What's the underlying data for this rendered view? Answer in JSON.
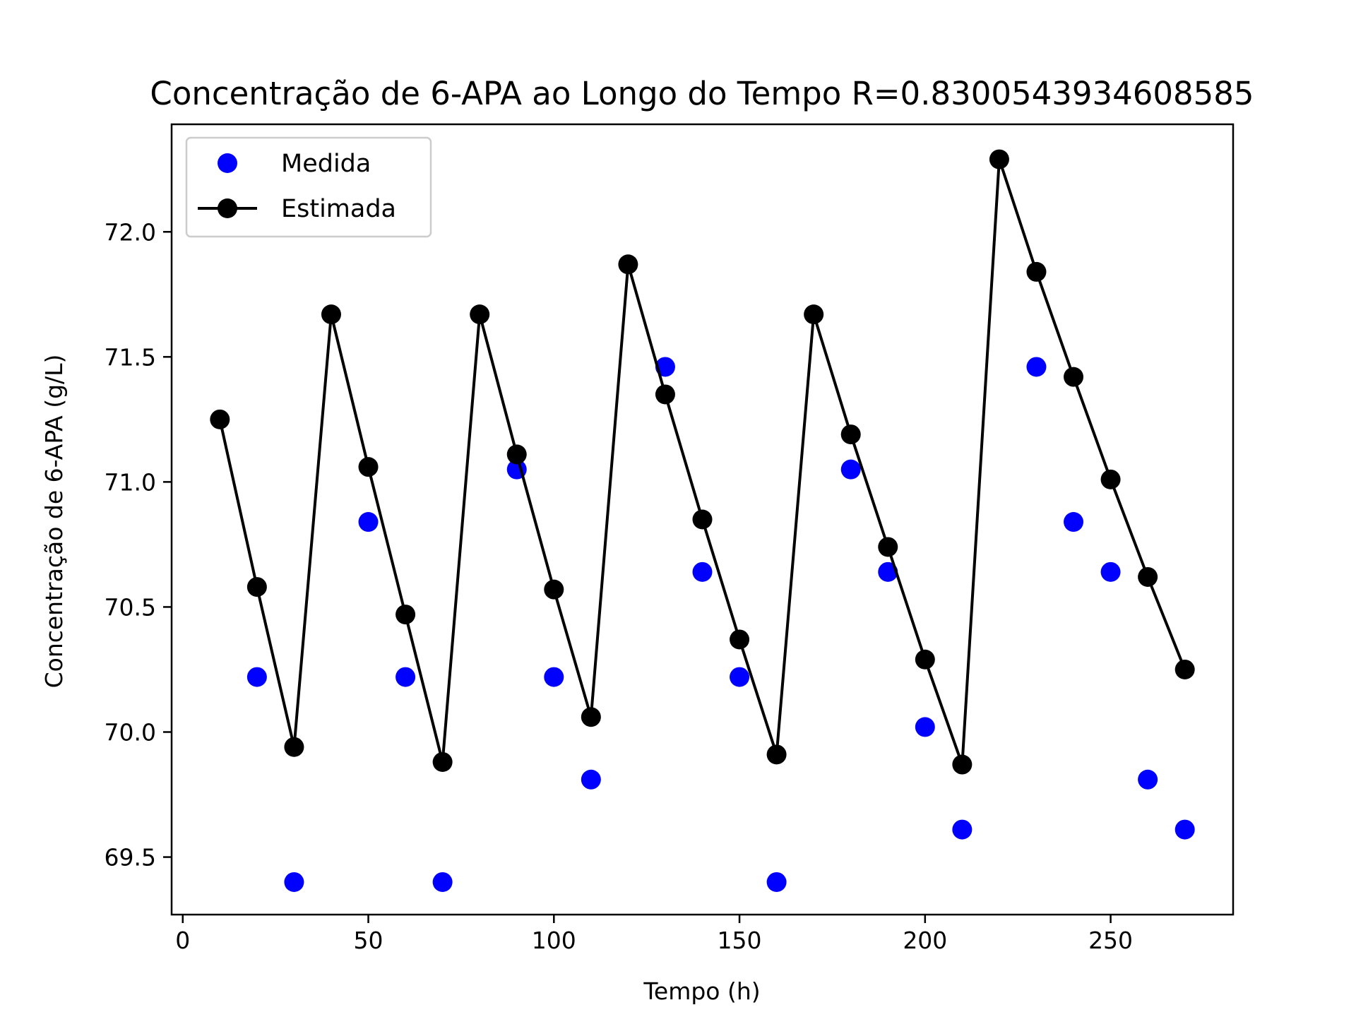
{
  "chart_data": {
    "type": "scatter",
    "title": "Concentração de 6-APA ao Longo do Tempo R=0.8300543934608585",
    "xlabel": "Tempo (h)",
    "ylabel": "Concentração de 6-APA (g/L)",
    "xlim": [
      -3,
      283
    ],
    "ylim": [
      69.27,
      72.43
    ],
    "xticks": [
      0,
      50,
      100,
      150,
      200,
      250
    ],
    "yticks": [
      69.5,
      70.0,
      70.5,
      71.0,
      71.5,
      72.0
    ],
    "grid": false,
    "legend_position": "top-left",
    "series": [
      {
        "name": "Medida",
        "style": "markers",
        "color": "#0000ff",
        "x": [
          20,
          30,
          50,
          60,
          70,
          90,
          100,
          110,
          130,
          140,
          150,
          160,
          180,
          190,
          200,
          210,
          230,
          240,
          250,
          260,
          270
        ],
        "y": [
          70.22,
          69.4,
          70.84,
          70.22,
          69.4,
          71.05,
          70.22,
          69.81,
          71.46,
          70.64,
          70.22,
          69.4,
          71.05,
          70.64,
          70.02,
          69.61,
          71.46,
          70.84,
          70.64,
          69.81,
          69.61
        ]
      },
      {
        "name": "Estimada",
        "style": "line+markers",
        "color": "#000000",
        "x": [
          10,
          20,
          30,
          40,
          50,
          60,
          70,
          80,
          90,
          100,
          110,
          120,
          130,
          140,
          150,
          160,
          170,
          180,
          190,
          200,
          210,
          220,
          230,
          240,
          250,
          260,
          270
        ],
        "y": [
          71.25,
          70.58,
          69.94,
          71.67,
          71.06,
          70.47,
          69.88,
          71.67,
          71.11,
          70.57,
          70.06,
          71.87,
          71.35,
          70.85,
          70.37,
          69.91,
          71.67,
          71.19,
          70.74,
          70.29,
          69.87,
          72.29,
          71.84,
          71.42,
          71.01,
          70.62,
          70.25
        ]
      }
    ]
  }
}
